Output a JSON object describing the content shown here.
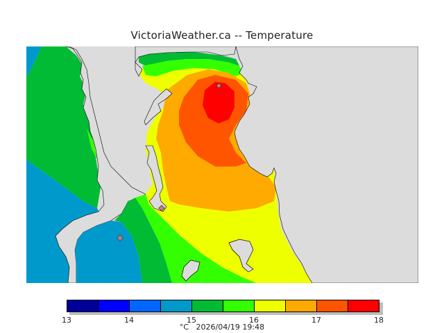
{
  "title": "VictoriaWeather.ca -- Temperature",
  "footer": {
    "unit": "°C",
    "datetime": "2026/04/19 19:48"
  },
  "colors": {
    "land": "#dcdcdc",
    "water_edge": "#ffffff",
    "band_13_135": "#000099",
    "band_135_14": "#0000ff",
    "band_14_145": "#0066ff",
    "band_145_15": "#0099cc",
    "band_15_155": "#00bb33",
    "band_155_16": "#33ff00",
    "band_16_165": "#eeff00",
    "band_165_17": "#ffaa00",
    "band_17_175": "#ff5500",
    "band_175_18": "#ff0000",
    "station": "#c08080"
  },
  "legend": {
    "bands": [
      "#000099",
      "#0000ff",
      "#0066ff",
      "#0099cc",
      "#00bb33",
      "#33ff00",
      "#eeff00",
      "#ffaa00",
      "#ff5500",
      "#ff0000"
    ],
    "ticks": [
      "13",
      "14",
      "15",
      "16",
      "17",
      "18"
    ]
  }
}
